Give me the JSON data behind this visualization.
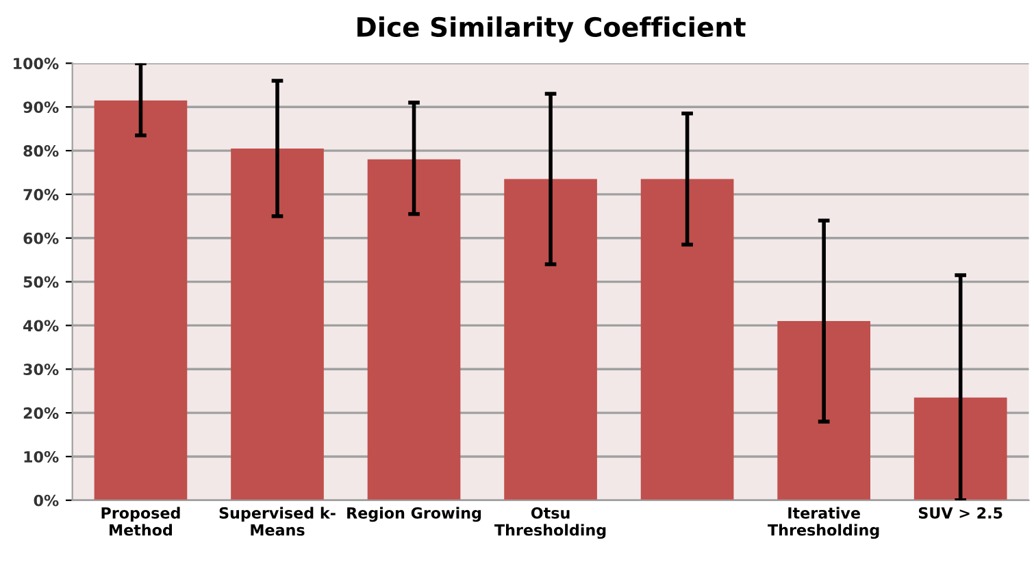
{
  "chart_data": {
    "type": "bar",
    "title": "Dice Similarity Coefficient",
    "categories": [
      "Proposed\nMethod",
      "Supervised k-\nMeans",
      "Region Growing",
      "Otsu\nThresholding",
      null,
      "Iterative\nThresholding",
      "SUV > 2.5"
    ],
    "values": [
      91.5,
      80.5,
      78,
      73.5,
      73.5,
      41,
      23.5
    ],
    "errors": [
      [
        83.5,
        100
      ],
      [
        65,
        96
      ],
      [
        65.5,
        91
      ],
      [
        54,
        93
      ],
      [
        58.5,
        88.5
      ],
      [
        18,
        64
      ],
      [
        0,
        51.5
      ]
    ],
    "color": "#c0504d",
    "ylim": [
      0,
      100
    ],
    "yticks": [
      {
        "value": 0,
        "label": "0%"
      },
      {
        "value": 10,
        "label": "10%"
      },
      {
        "value": 20,
        "label": "20%"
      },
      {
        "value": 30,
        "label": "30%"
      },
      {
        "value": 40,
        "label": "40%"
      },
      {
        "value": 50,
        "label": "50%"
      },
      {
        "value": 60,
        "label": "60%"
      },
      {
        "value": 70,
        "label": "70%"
      },
      {
        "value": 80,
        "label": "80%"
      },
      {
        "value": 90,
        "label": "90%"
      },
      {
        "value": 100,
        "label": "100%"
      }
    ],
    "grid": "y"
  }
}
